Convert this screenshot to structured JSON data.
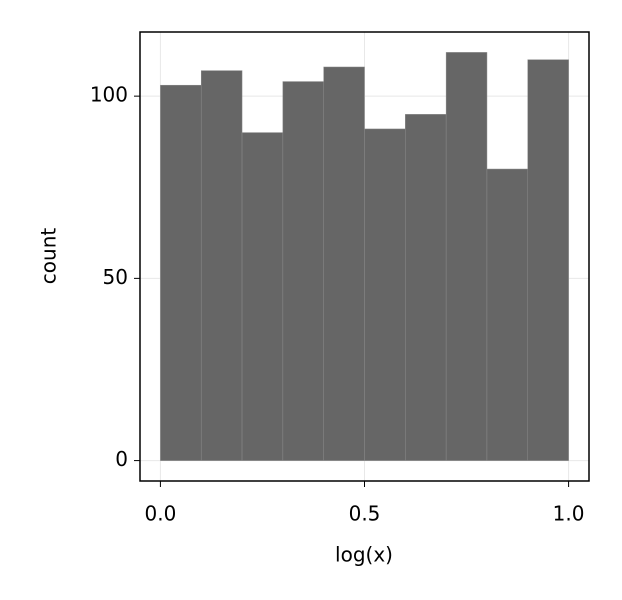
{
  "chart_data": {
    "type": "histogram",
    "xlabel": "log(x)",
    "ylabel": "count",
    "bins": [
      0.0,
      0.1,
      0.2,
      0.3,
      0.4,
      0.5,
      0.6,
      0.7,
      0.8,
      0.9,
      1.0
    ],
    "counts": [
      103,
      107,
      90,
      104,
      108,
      91,
      95,
      112,
      80,
      110
    ],
    "color": "#666666",
    "xlim": [
      -0.05,
      1.05
    ],
    "ylim": [
      -5.6,
      117.6
    ],
    "xticks": [
      {
        "value": 0,
        "label": "0.0"
      },
      {
        "value": 0.5,
        "label": "0.5"
      },
      {
        "value": 1,
        "label": "1.0"
      }
    ],
    "yticks": [
      0,
      50,
      100
    ],
    "grid": true
  }
}
